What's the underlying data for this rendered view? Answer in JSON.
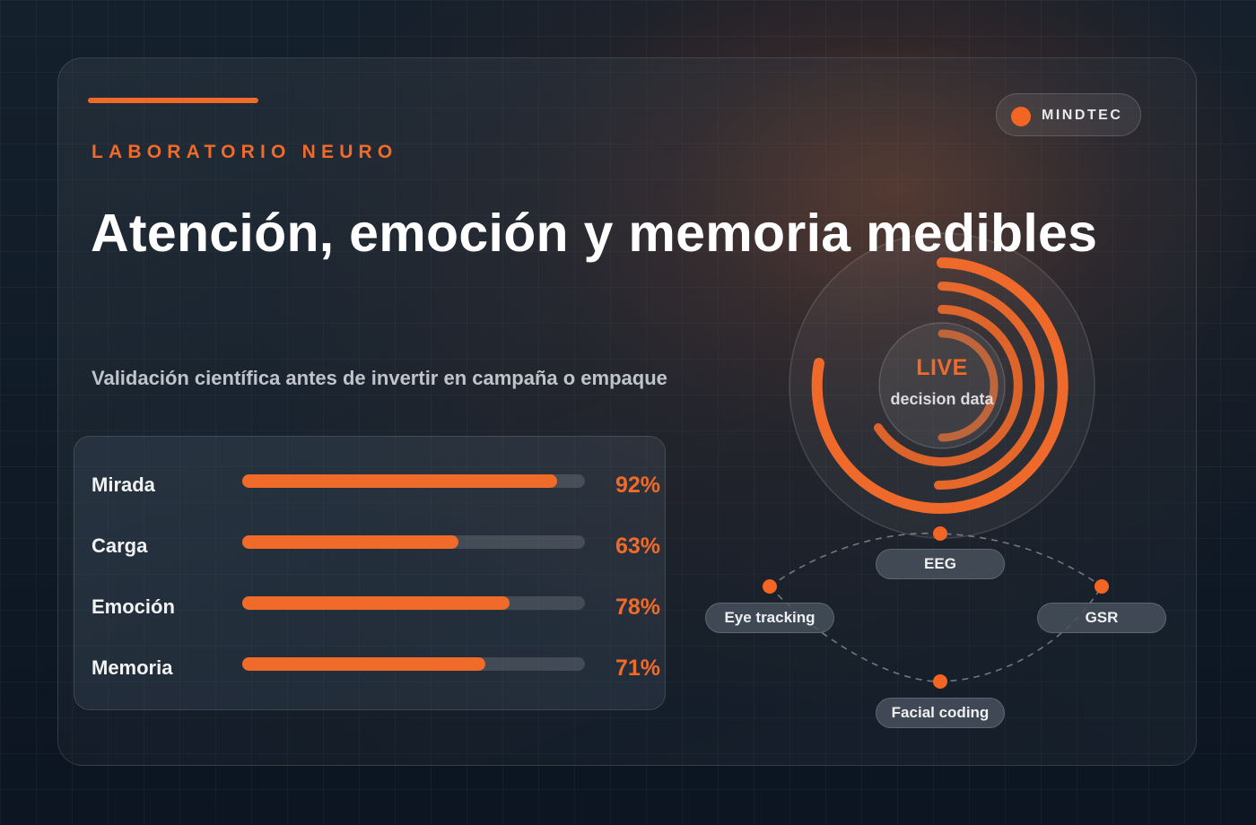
{
  "brand": {
    "name": "MINDTEC"
  },
  "header": {
    "eyebrow": "LABORATORIO NEURO",
    "title": "Atención, emoción y memoria medibles",
    "subtitle": "Validación científica antes de invertir en campaña o empaque"
  },
  "metrics": [
    {
      "label": "Mirada",
      "value": 92,
      "display": "92%"
    },
    {
      "label": "Carga",
      "value": 63,
      "display": "63%"
    },
    {
      "label": "Emoción",
      "value": 78,
      "display": "78%"
    },
    {
      "label": "Memoria",
      "value": 71,
      "display": "71%"
    }
  ],
  "live": {
    "label": "LIVE",
    "sublabel": "decision data"
  },
  "signals": {
    "eeg": "EEG",
    "eye_tracking": "Eye tracking",
    "gsr": "GSR",
    "facial_coding": "Facial coding"
  },
  "colors": {
    "accent": "#f06a2a",
    "background": "#111c28"
  }
}
